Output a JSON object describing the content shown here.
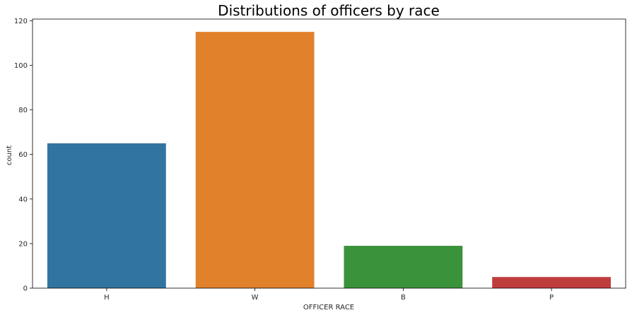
{
  "chart_data": {
    "type": "bar",
    "title": "Distributions of officers by race",
    "xlabel": "OFFICER RACE",
    "ylabel": "count",
    "categories": [
      "H",
      "W",
      "B",
      "P"
    ],
    "values": [
      65,
      115,
      19,
      5
    ],
    "colors": [
      "#3274a1",
      "#e1812c",
      "#3a923a",
      "#c03d3e"
    ],
    "ylim": [
      0,
      120.75
    ],
    "yticks": [
      0,
      20,
      40,
      60,
      80,
      100,
      120
    ],
    "grid": false,
    "legend": "none"
  }
}
